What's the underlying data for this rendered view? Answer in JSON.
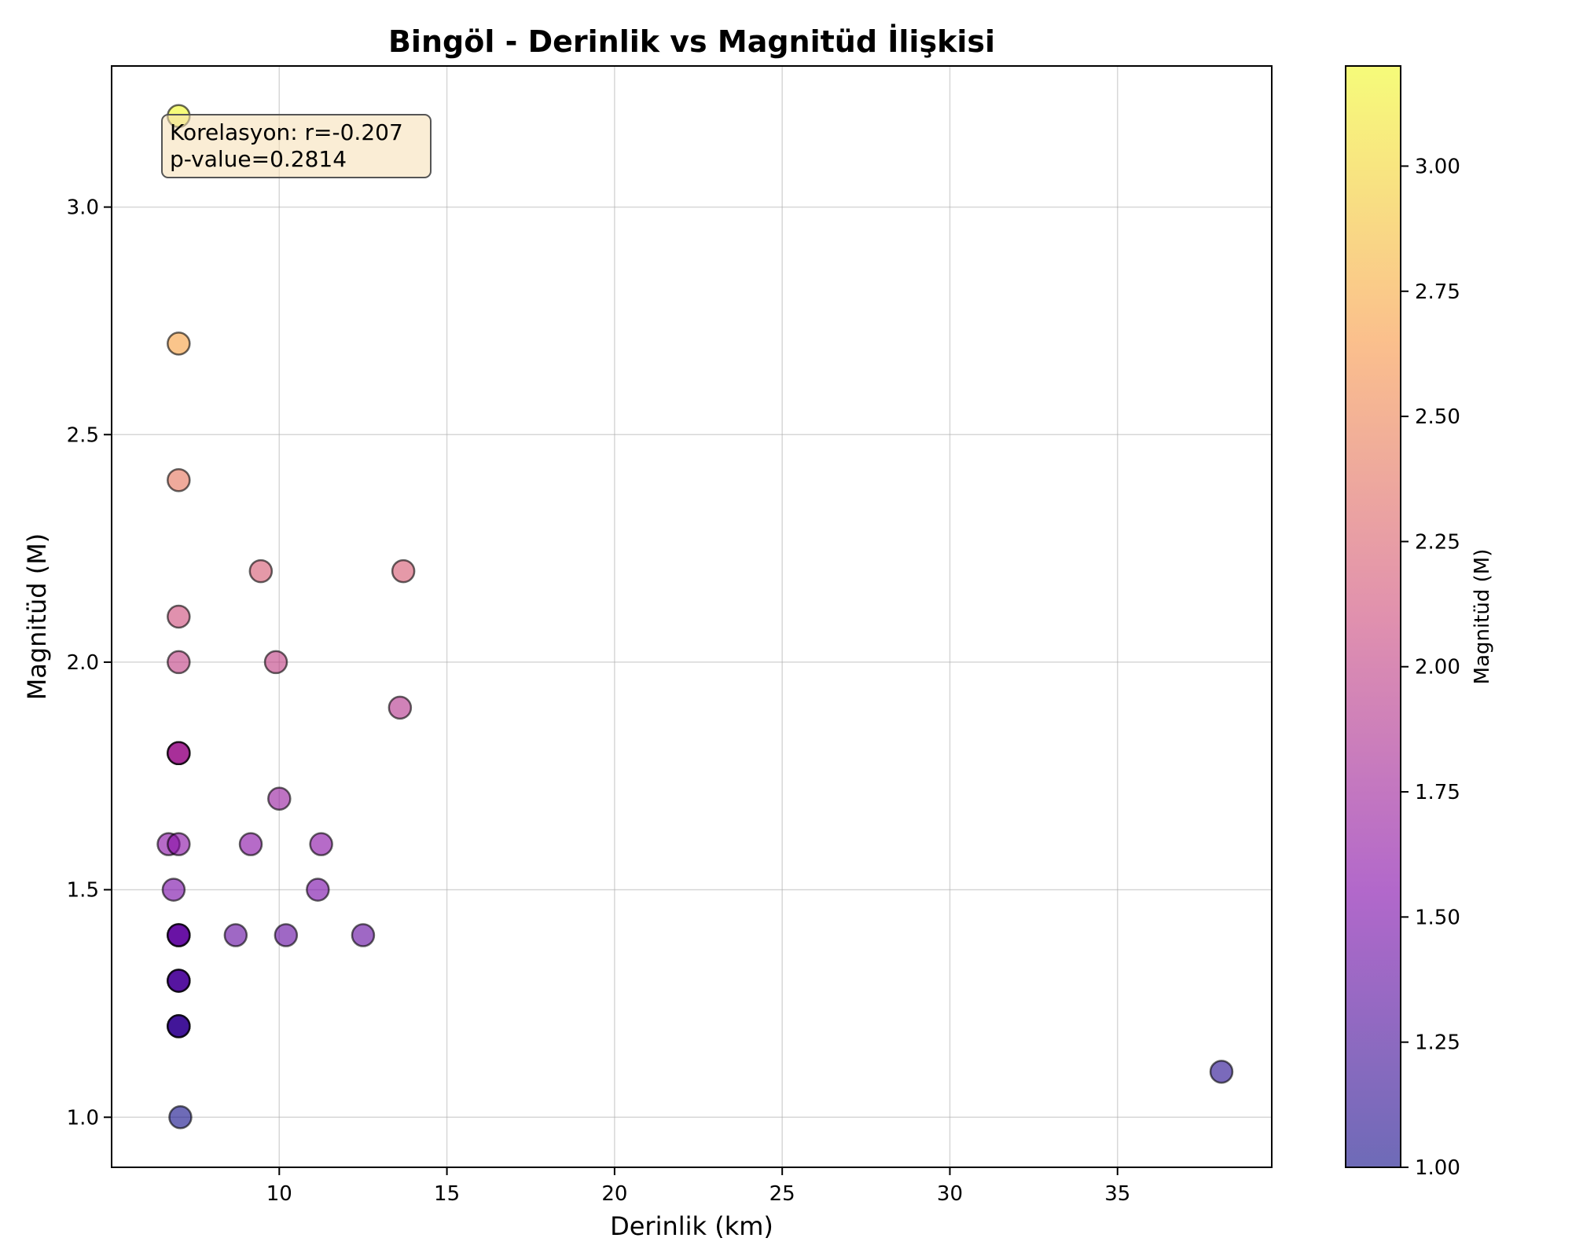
{
  "chart_data": {
    "type": "scatter",
    "title": "Bingöl - Derinlik vs Magnitüd İlişkisi",
    "xlabel": "Derinlik (km)",
    "ylabel": "Magnitüd (M)",
    "xlim": [
      5.0,
      39.6
    ],
    "ylim": [
      0.89,
      3.31
    ],
    "xticks": [
      10,
      15,
      20,
      25,
      30,
      35
    ],
    "yticks": [
      1.0,
      1.5,
      2.0,
      2.5,
      3.0
    ],
    "xtick_labels": [
      "10",
      "15",
      "20",
      "25",
      "30",
      "35"
    ],
    "ytick_labels": [
      "1.0",
      "1.5",
      "2.0",
      "2.5",
      "3.0"
    ],
    "grid": true,
    "colormap": "plasma",
    "color_by": "magnitude",
    "annotation": {
      "lines": [
        "Korelasyon: r=-0.207",
        "p-value=0.2814"
      ],
      "placement": "top-left",
      "background": "#f5deb3"
    },
    "colorbar": {
      "label": "Magnitüd (M)",
      "range": [
        1.0,
        3.2
      ],
      "ticks": [
        1.0,
        1.25,
        1.5,
        1.75,
        2.0,
        2.25,
        2.5,
        2.75,
        3.0
      ],
      "tick_labels": [
        "1.00",
        "1.25",
        "1.50",
        "1.75",
        "2.00",
        "2.25",
        "2.50",
        "2.75",
        "3.00"
      ]
    },
    "points": [
      {
        "x": 7.0,
        "y": 3.2
      },
      {
        "x": 7.0,
        "y": 2.7
      },
      {
        "x": 7.0,
        "y": 2.4
      },
      {
        "x": 9.45,
        "y": 2.2
      },
      {
        "x": 13.7,
        "y": 2.2
      },
      {
        "x": 7.0,
        "y": 2.1
      },
      {
        "x": 7.0,
        "y": 2.0
      },
      {
        "x": 9.9,
        "y": 2.0
      },
      {
        "x": 13.6,
        "y": 1.9
      },
      {
        "x": 7.0,
        "y": 1.8
      },
      {
        "x": 7.0,
        "y": 1.8
      },
      {
        "x": 7.0,
        "y": 1.8
      },
      {
        "x": 10.0,
        "y": 1.7
      },
      {
        "x": 6.7,
        "y": 1.6
      },
      {
        "x": 7.0,
        "y": 1.6
      },
      {
        "x": 9.15,
        "y": 1.6
      },
      {
        "x": 11.25,
        "y": 1.6
      },
      {
        "x": 6.85,
        "y": 1.5
      },
      {
        "x": 11.15,
        "y": 1.5
      },
      {
        "x": 7.0,
        "y": 1.4
      },
      {
        "x": 7.0,
        "y": 1.4
      },
      {
        "x": 7.0,
        "y": 1.4
      },
      {
        "x": 8.7,
        "y": 1.4
      },
      {
        "x": 10.2,
        "y": 1.4
      },
      {
        "x": 12.5,
        "y": 1.4
      },
      {
        "x": 7.0,
        "y": 1.3
      },
      {
        "x": 7.0,
        "y": 1.3
      },
      {
        "x": 7.0,
        "y": 1.3
      },
      {
        "x": 7.0,
        "y": 1.2
      },
      {
        "x": 7.0,
        "y": 1.2
      },
      {
        "x": 7.0,
        "y": 1.2
      },
      {
        "x": 7.05,
        "y": 1.0
      },
      {
        "x": 38.1,
        "y": 1.1
      }
    ]
  }
}
